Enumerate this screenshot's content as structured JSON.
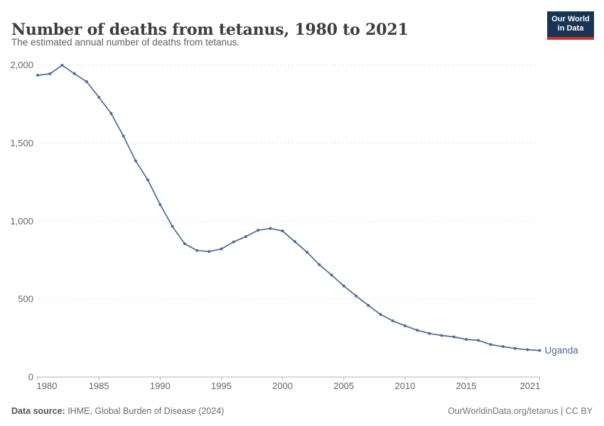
{
  "header": {
    "title": "Number of deaths from tetanus, 1980 to 2021",
    "subtitle": "The estimated annual number of deaths from tetanus.",
    "logo": {
      "line1": "Our World",
      "line2": "in Data",
      "bg_color": "#1a3455",
      "accent_color": "#d0332b"
    }
  },
  "chart_data": {
    "type": "line",
    "title": "Number of deaths from tetanus, 1980 to 2021",
    "subtitle": "The estimated annual number of deaths from tetanus.",
    "xlabel": "",
    "ylabel": "",
    "xlim": [
      1980,
      2021
    ],
    "ylim": [
      0,
      2000
    ],
    "grid": "horizontal dashed",
    "legend_position": "end-of-line label",
    "x_ticks": [
      1980,
      1985,
      1990,
      1995,
      2000,
      2005,
      2010,
      2015,
      2021
    ],
    "y_ticks": [
      0,
      500,
      1000,
      1500,
      2000
    ],
    "series": [
      {
        "name": "Uganda",
        "color": "#4c6a9c",
        "x": [
          1980,
          1981,
          1982,
          1983,
          1984,
          1985,
          1986,
          1987,
          1988,
          1989,
          1990,
          1991,
          1992,
          1993,
          1994,
          1995,
          1996,
          1997,
          1998,
          1999,
          2000,
          2001,
          2002,
          2003,
          2004,
          2005,
          2006,
          2007,
          2008,
          2009,
          2010,
          2011,
          2012,
          2013,
          2014,
          2015,
          2016,
          2017,
          2018,
          2019,
          2020,
          2021
        ],
        "values": [
          1934,
          1943,
          1998,
          1944,
          1893,
          1793,
          1689,
          1545,
          1385,
          1263,
          1106,
          966,
          854,
          811,
          804,
          821,
          866,
          900,
          941,
          952,
          936,
          868,
          800,
          720,
          654,
          584,
          520,
          459,
          401,
          360,
          328,
          300,
          279,
          266,
          257,
          241,
          235,
          208,
          195,
          183,
          175,
          170
        ]
      }
    ]
  },
  "footer": {
    "source_label": "Data source:",
    "source_text": " IHME, Global Burden of Disease (2024)",
    "credit": "OurWorldinData.org/tetanus | CC BY"
  },
  "colors": {
    "line": "#4c6a9c",
    "gridline": "#dddddd",
    "axis": "#b3b3b3",
    "tick_label": "#666666",
    "title": "#3d3d3d",
    "subtitle": "#616161"
  }
}
